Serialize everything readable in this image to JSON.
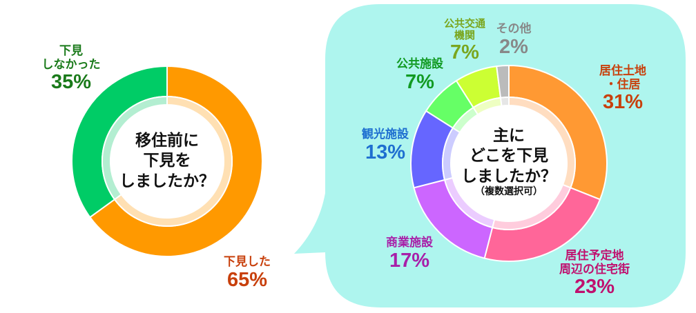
{
  "chart_data": [
    {
      "type": "pie",
      "variant": "donut",
      "title": "移住前に下見をしましたか？",
      "categories": [
        "下見した",
        "下見しなかった"
      ],
      "values": [
        65,
        35
      ],
      "unit": "%",
      "colors": [
        "#FF9900",
        "#00CC66"
      ],
      "inner_colors": [
        "#FFE0B3",
        "#B3EED1"
      ]
    },
    {
      "type": "pie",
      "variant": "donut",
      "title": "主にどこを下見しましたか？",
      "subtitle": "（複数選択可）",
      "categories": [
        "居住土地・住居",
        "居住予定地周辺の住宅街",
        "商業施設",
        "観光施設",
        "公共施設",
        "公共交通機関",
        "その他"
      ],
      "values": [
        31,
        23,
        17,
        13,
        7,
        7,
        2
      ],
      "unit": "%",
      "colors": [
        "#FF9933",
        "#FF6699",
        "#CC66FF",
        "#6666FF",
        "#66FF66",
        "#CCFF33",
        "#BBBBBB"
      ],
      "inner_colors": [
        "#FFDDC0",
        "#FFCCDD",
        "#EBCCFF",
        "#CCCCFF",
        "#CCFFCC",
        "#EEFFC2",
        "#E6E6E6"
      ]
    }
  ],
  "left": {
    "center_lines": [
      "移住前に",
      "下見を",
      "しましたか？"
    ],
    "labels": [
      {
        "lines": [
          "下見した"
        ],
        "percent": "65%",
        "color": "#C8400C"
      },
      {
        "lines": [
          "下見",
          "しなかった"
        ],
        "percent": "35%",
        "color": "#1A7A1A"
      }
    ]
  },
  "right": {
    "bubble_color": "#AEF5EE",
    "center_lines": [
      "主に",
      "どこを下見",
      "しましたか？"
    ],
    "center_note": "（複数選択可）",
    "labels": [
      {
        "lines": [
          "居住土地",
          "・住居"
        ],
        "percent": "31%",
        "color": "#C8400C"
      },
      {
        "lines": [
          "居住予定地",
          "周辺の住宅街"
        ],
        "percent": "23%",
        "color": "#C0106E"
      },
      {
        "lines": [
          "商業施設"
        ],
        "percent": "17%",
        "color": "#A81FA8"
      },
      {
        "lines": [
          "観光施設"
        ],
        "percent": "13%",
        "color": "#1E6FD0"
      },
      {
        "lines": [
          "公共施設"
        ],
        "percent": "7%",
        "color": "#119A22"
      },
      {
        "lines": [
          "公共交通",
          "機関"
        ],
        "percent": "7%",
        "color": "#7AA61E"
      },
      {
        "lines": [
          "その他"
        ],
        "percent": "2%",
        "color": "#888888"
      }
    ]
  }
}
